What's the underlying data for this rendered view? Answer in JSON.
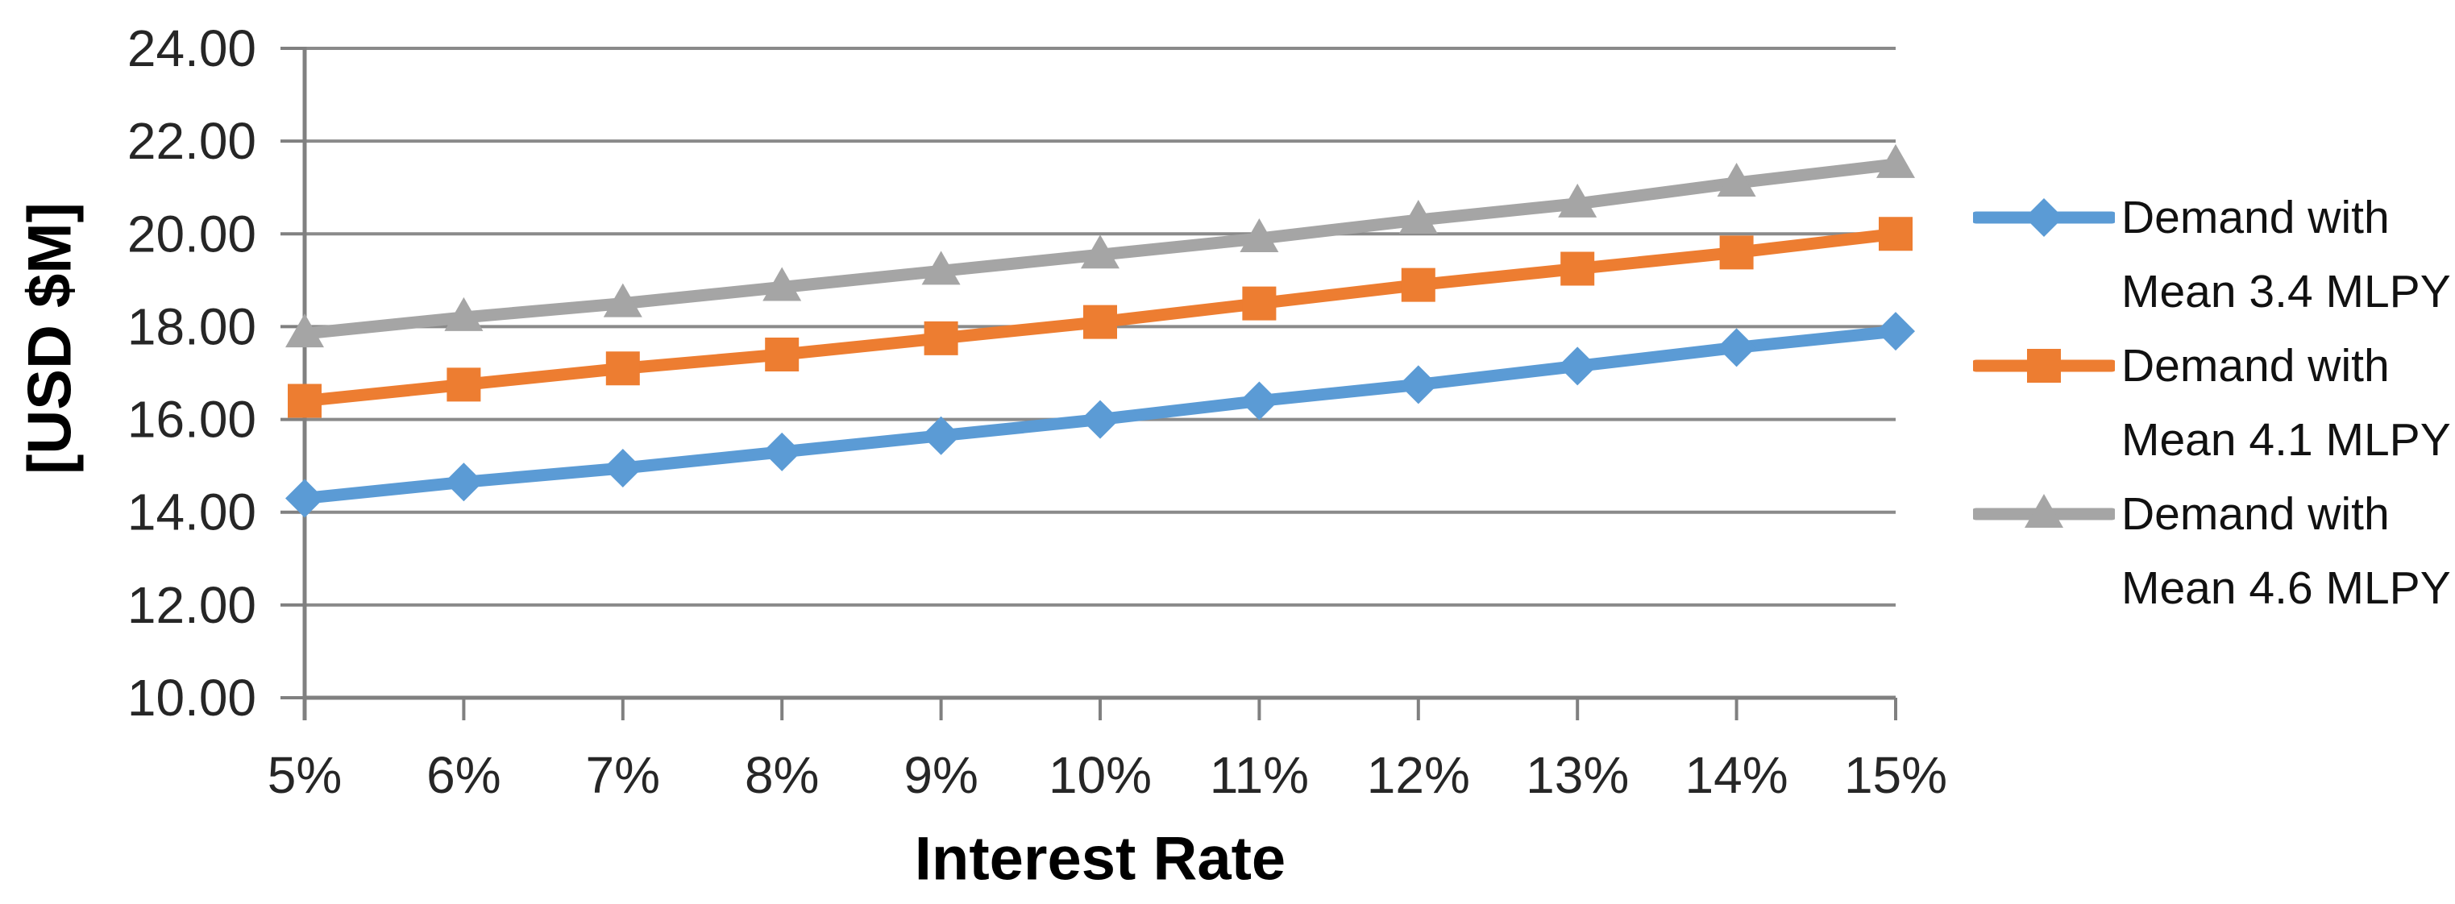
{
  "chart_data": {
    "type": "line",
    "title": "",
    "xlabel": "Interest Rate",
    "ylabel": "[USD $M]",
    "x_tick_labels": [
      "5%",
      "6%",
      "7%",
      "8%",
      "9%",
      "10%",
      "11%",
      "12%",
      "13%",
      "14%",
      "15%"
    ],
    "x_values_percent": [
      5,
      6,
      7,
      8,
      9,
      10,
      11,
      12,
      13,
      14,
      15
    ],
    "y_tick_labels": [
      "10.00",
      "12.00",
      "14.00",
      "16.00",
      "18.00",
      "20.00",
      "22.00",
      "24.00"
    ],
    "y_ticks": [
      10,
      12,
      14,
      16,
      18,
      20,
      22,
      24
    ],
    "ylim": [
      10,
      24
    ],
    "grid": "horizontal-only",
    "legend_position": "right",
    "series": [
      {
        "name": "Demand with Mean 3.4 MLPY",
        "label_lines": [
          "Demand with",
          "Mean 3.4 MLPY"
        ],
        "color": "#5B9BD5",
        "marker": "diamond",
        "values": [
          14.3,
          14.65,
          14.95,
          15.3,
          15.65,
          16.0,
          16.4,
          16.75,
          17.15,
          17.55,
          17.9
        ]
      },
      {
        "name": "Demand with Mean 4.1 MLPY",
        "label_lines": [
          "Demand with",
          "Mean 4.1 MLPY"
        ],
        "color": "#ED7D31",
        "marker": "square",
        "values": [
          16.4,
          16.75,
          17.1,
          17.4,
          17.75,
          18.1,
          18.5,
          18.9,
          19.25,
          19.6,
          20.0
        ]
      },
      {
        "name": "Demand with Mean 4.6 MLPY",
        "label_lines": [
          "Demand with",
          "Mean 4.6 MLPY"
        ],
        "color": "#A5A5A5",
        "marker": "triangle",
        "values": [
          17.85,
          18.2,
          18.5,
          18.85,
          19.2,
          19.55,
          19.9,
          20.3,
          20.65,
          21.1,
          21.5
        ]
      }
    ],
    "colors": {
      "gridline": "#8A8A8A",
      "axis": "#808080",
      "tick_label": "#262626",
      "title": "#000000",
      "background": "#FFFFFF"
    }
  }
}
